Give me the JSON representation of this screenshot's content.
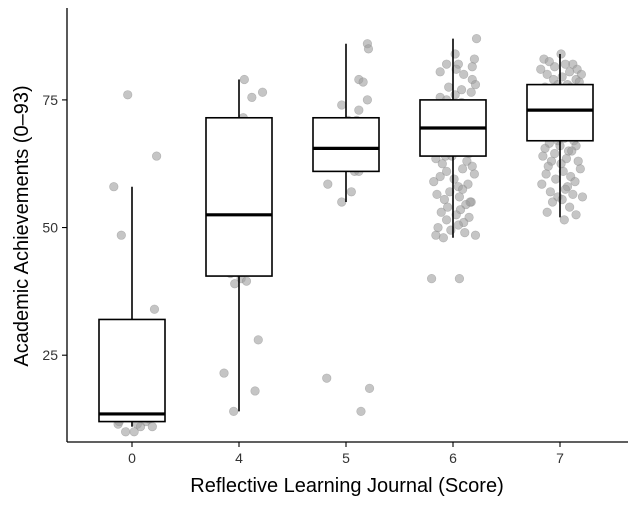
{
  "chart_data": {
    "type": "box",
    "title": "",
    "xlabel": "Reflective Learning Journal (Score)",
    "ylabel": "Academic Achievements (0–93)",
    "ylim": [
      8,
      93
    ],
    "yticks": [
      25,
      50,
      75
    ],
    "categories": [
      "0",
      "4",
      "5",
      "6",
      "7"
    ],
    "boxes": [
      {
        "category": "0",
        "whisker_low": 11,
        "q1": 12,
        "median": 13.5,
        "q3": 32,
        "whisker_high": 58
      },
      {
        "category": "4",
        "whisker_low": 14,
        "q1": 40.5,
        "median": 52.5,
        "q3": 71.5,
        "whisker_high": 79
      },
      {
        "category": "5",
        "whisker_low": 55,
        "q1": 61,
        "median": 65.5,
        "q3": 71.5,
        "whisker_high": 86
      },
      {
        "category": "6",
        "whisker_low": 48,
        "q1": 64,
        "median": 69.5,
        "q3": 75,
        "whisker_high": 87
      },
      {
        "category": "7",
        "whisker_low": 52,
        "q1": 67,
        "median": 73,
        "q3": 78,
        "whisker_high": 84
      }
    ],
    "points": [
      {
        "category": "0",
        "jitter": [
          -0.04,
          0.23,
          -0.17,
          -0.1,
          0.21,
          -0.09,
          -0.19,
          0.11,
          -0.15,
          0.09,
          -0.02,
          0.16,
          -0.12,
          0.13,
          0.05,
          -0.13,
          0.08,
          0.19,
          0.02,
          -0.06
        ],
        "values": [
          76,
          64,
          58,
          48.5,
          34,
          30,
          15.5,
          15.5,
          14,
          13.5,
          13,
          12.5,
          12,
          12,
          11.5,
          11.5,
          11,
          11,
          10,
          10
        ]
      },
      {
        "category": "4",
        "jitter": [
          0.05,
          0.22,
          0.12,
          0.04,
          0.18,
          -0.19,
          -0.12,
          -0.05,
          0.17,
          0.13,
          0.08,
          -0.2,
          -0.15,
          -0.08,
          0.02,
          0.07,
          -0.04,
          0.18,
          -0.14,
          0.15,
          -0.05
        ],
        "values": [
          79,
          76.5,
          75.5,
          71.5,
          67,
          62,
          57,
          52.5,
          52,
          52,
          49,
          46,
          43,
          41,
          40,
          39.5,
          39,
          28,
          21.5,
          18,
          14
        ]
      },
      {
        "category": "5",
        "jitter": [
          0.2,
          0.21,
          0.12,
          0.16,
          0.2,
          -0.04,
          0.12,
          0.1,
          0.02,
          -0.02,
          0.1,
          -0.14,
          -0.08,
          -0.15,
          -0.08,
          -0.03,
          0.15,
          -0.13,
          0.06,
          0.21,
          0.14,
          -0.12,
          0.05,
          -0.03,
          0.08,
          0.12,
          -0.17,
          0.05,
          -0.04,
          -0.18,
          0.22,
          0.14
        ],
        "values": [
          86,
          85,
          79,
          78.5,
          75,
          74,
          73,
          71,
          71,
          70.5,
          69,
          68.5,
          68,
          66.5,
          66,
          66,
          65.5,
          65,
          64.5,
          64,
          63.5,
          63,
          62.5,
          62,
          61,
          61,
          58.5,
          57,
          55,
          20.5,
          18.5,
          14
        ]
      },
      {
        "category": "6",
        "jitter": [
          0.22,
          0.02,
          0.2,
          -0.06,
          0.05,
          0.18,
          0.03,
          -0.12,
          0.1,
          0.18,
          0.21,
          -0.04,
          0.08,
          0.17,
          0.02,
          -0.12,
          -0.06,
          0.08,
          0.13,
          0.2,
          -0.02,
          -0.09,
          0.14,
          -0.16,
          0.05,
          0.12,
          -0.2,
          0.1,
          -0.04,
          -0.13,
          0.01,
          -0.08,
          0.06,
          0.16,
          -0.14,
          0.04,
          -0.02,
          0.09,
          -0.09,
          -0.05,
          0.07,
          0.19,
          -0.11,
          0.03,
          -0.17,
          0.15,
          -0.07,
          -0.01,
          -0.16,
          0.13,
          -0.1,
          0.18,
          0.09,
          -0.06,
          0.2,
          -0.12,
          0.01,
          -0.18,
          0.14,
          0.05,
          0.09,
          -0.03,
          -0.15,
          0.06,
          -0.08,
          0.17,
          0.12,
          -0.05,
          0.07,
          -0.11,
          0.03,
          0.15,
          -0.06,
          0.1,
          0.05,
          -0.14,
          -0.02,
          0.11,
          -0.16,
          0.21,
          -0.09,
          0.06,
          -0.2,
          0.16
        ],
        "values": [
          87,
          84,
          83,
          82,
          82,
          81.5,
          81,
          80.5,
          80,
          79,
          78,
          77.5,
          77,
          76.5,
          76,
          75.5,
          75,
          74.5,
          74,
          73.5,
          73,
          72.5,
          72,
          71.5,
          71,
          71,
          70.5,
          70,
          70,
          69.5,
          69.5,
          69,
          69,
          68.5,
          68,
          68,
          67.5,
          67,
          67,
          66.5,
          66,
          66,
          65.5,
          65,
          65,
          64.5,
          64,
          64,
          63.5,
          63,
          62.5,
          62,
          61.5,
          61,
          60.5,
          60,
          59.5,
          59,
          58.5,
          58,
          57.5,
          57,
          56.5,
          56,
          55.5,
          55,
          54.5,
          54,
          53.5,
          53,
          52.5,
          52,
          51.5,
          51,
          50.5,
          50,
          49.5,
          49,
          48.5,
          48.5,
          48,
          40,
          40,
          55
        ]
      },
      {
        "category": "7",
        "jitter": [
          0.01,
          -0.15,
          -0.1,
          0.12,
          0.05,
          -0.05,
          -0.18,
          0.16,
          0.09,
          0.2,
          -0.12,
          0.02,
          0.15,
          -0.06,
          0.18,
          0.07,
          -0.02,
          0.1,
          -0.14,
          0.04,
          0.13,
          -0.08,
          0.19,
          0.0,
          -0.17,
          0.08,
          0.14,
          -0.11,
          0.06,
          -0.03,
          0.17,
          -0.16,
          0.11,
          -0.07,
          0.03,
          -0.13,
          0.16,
          0.09,
          -0.01,
          -0.19,
          0.12,
          0.05,
          -0.09,
          0.2,
          -0.04,
          0.07,
          -0.15,
          0.14,
          0.02,
          -0.12,
          0.18,
          -0.06,
          0.1,
          -0.18,
          0.04,
          0.13,
          -0.02,
          -0.1,
          0.15,
          0.0,
          -0.14,
          0.08,
          0.11,
          -0.05,
          -0.16,
          0.06,
          0.17,
          -0.08,
          0.01,
          -0.11,
          0.19,
          0.03,
          -0.13,
          0.1,
          -0.04,
          0.14,
          -0.17,
          0.07,
          0.05,
          -0.09,
          0.12,
          -0.02,
          0.02,
          -0.07,
          0.09,
          -0.12,
          0.15,
          0.04,
          0.21
        ],
        "values": [
          84,
          83,
          82.5,
          82,
          82,
          81.5,
          81,
          81,
          80.5,
          80,
          80,
          79.5,
          79,
          79,
          78.5,
          78,
          78,
          77.5,
          77.5,
          77,
          77,
          76.5,
          76,
          76,
          75.5,
          75.5,
          75,
          75,
          74.5,
          74.5,
          74,
          74,
          73.5,
          73.5,
          73,
          73,
          72.5,
          72.5,
          72,
          72,
          71.5,
          71.5,
          71,
          71,
          70.5,
          70,
          70,
          69.5,
          69.5,
          69,
          69,
          68.5,
          68,
          68,
          67.5,
          67,
          67,
          66.5,
          66,
          66,
          65.5,
          65,
          65,
          64.5,
          64,
          63.5,
          63,
          63,
          62.5,
          62,
          61.5,
          61,
          60.5,
          60,
          59.5,
          59,
          58.5,
          58,
          57.5,
          57,
          56.5,
          56,
          55.5,
          55,
          54,
          53,
          52.5,
          51.5,
          56
        ]
      }
    ]
  }
}
